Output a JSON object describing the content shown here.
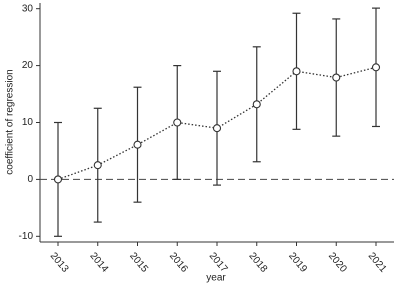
{
  "chart_data": {
    "type": "errorbar-line",
    "x_label": "year",
    "y_label": "coefficient of regression",
    "categories": [
      "2013",
      "2014",
      "2015",
      "2016",
      "2017",
      "2018",
      "2019",
      "2020",
      "2021"
    ],
    "values": [
      0,
      2.5,
      6.1,
      10,
      9,
      13.2,
      19,
      17.9,
      19.7
    ],
    "errors": [
      10,
      10,
      10.1,
      10,
      10,
      10.1,
      10.2,
      10.3,
      10.4
    ],
    "color": "#333333",
    "ylim": [
      -11,
      31
    ],
    "yticks": [
      -10,
      0,
      10,
      20,
      30
    ],
    "reference_line": 0
  }
}
